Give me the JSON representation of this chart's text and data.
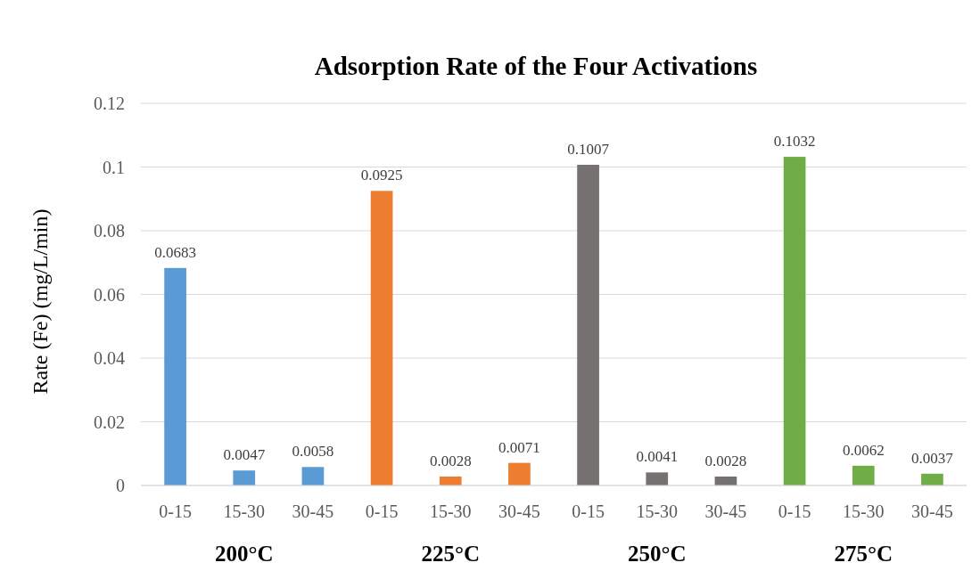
{
  "chart_data": {
    "type": "bar",
    "title": "Adsorption Rate of the Four Activations",
    "ylabel": "Rate (Fe) (mg/L/min)",
    "categories": [
      "0-15",
      "15-30",
      "30-45",
      "0-15",
      "15-30",
      "30-45",
      "0-15",
      "15-30",
      "30-45",
      "0-15",
      "15-30",
      "30-45"
    ],
    "values": [
      0.0683,
      0.0047,
      0.0058,
      0.0925,
      0.0028,
      0.0071,
      0.1007,
      0.0041,
      0.0028,
      0.1032,
      0.0062,
      0.0037
    ],
    "colors": [
      "#5b9bd5",
      "#5b9bd5",
      "#5b9bd5",
      "#ed7d31",
      "#ed7d31",
      "#ed7d31",
      "#767171",
      "#767171",
      "#767171",
      "#70ad47",
      "#70ad47",
      "#70ad47"
    ],
    "annotations": [
      "200°C",
      "225°C",
      "250°C",
      "275°C"
    ],
    "ylim": [
      0,
      0.12
    ],
    "yticks": [
      0,
      0.02,
      0.04,
      0.06,
      0.08,
      0.1,
      0.12
    ],
    "grid": "y",
    "data_labels": true
  }
}
